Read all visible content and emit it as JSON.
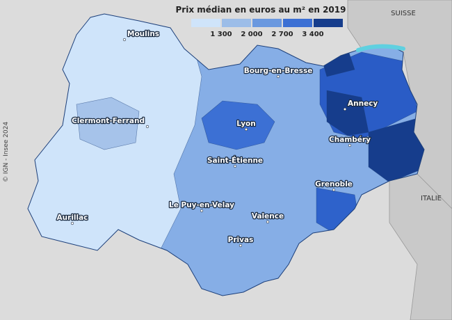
{
  "legend": {
    "title": "Prix médian en euros au m² en 2019",
    "colors": [
      "#cfe4fa",
      "#9cbde8",
      "#6a98df",
      "#3c70d4",
      "#163d8c"
    ],
    "breaks": [
      "1 300",
      "2 000",
      "2 700",
      "3 400"
    ]
  },
  "cities": [
    "Moulins",
    "Clermont-Ferrand",
    "Lyon",
    "Bourg-en-Bresse",
    "Annecy",
    "Chambéry",
    "Saint-Étienne",
    "Grenoble",
    "Le Puy-en-Velay",
    "Valence",
    "Aurillac",
    "Privas"
  ],
  "countries": [
    "SUISSE",
    "ITALIE"
  ],
  "credit": "© IGN - Insee 2024"
}
